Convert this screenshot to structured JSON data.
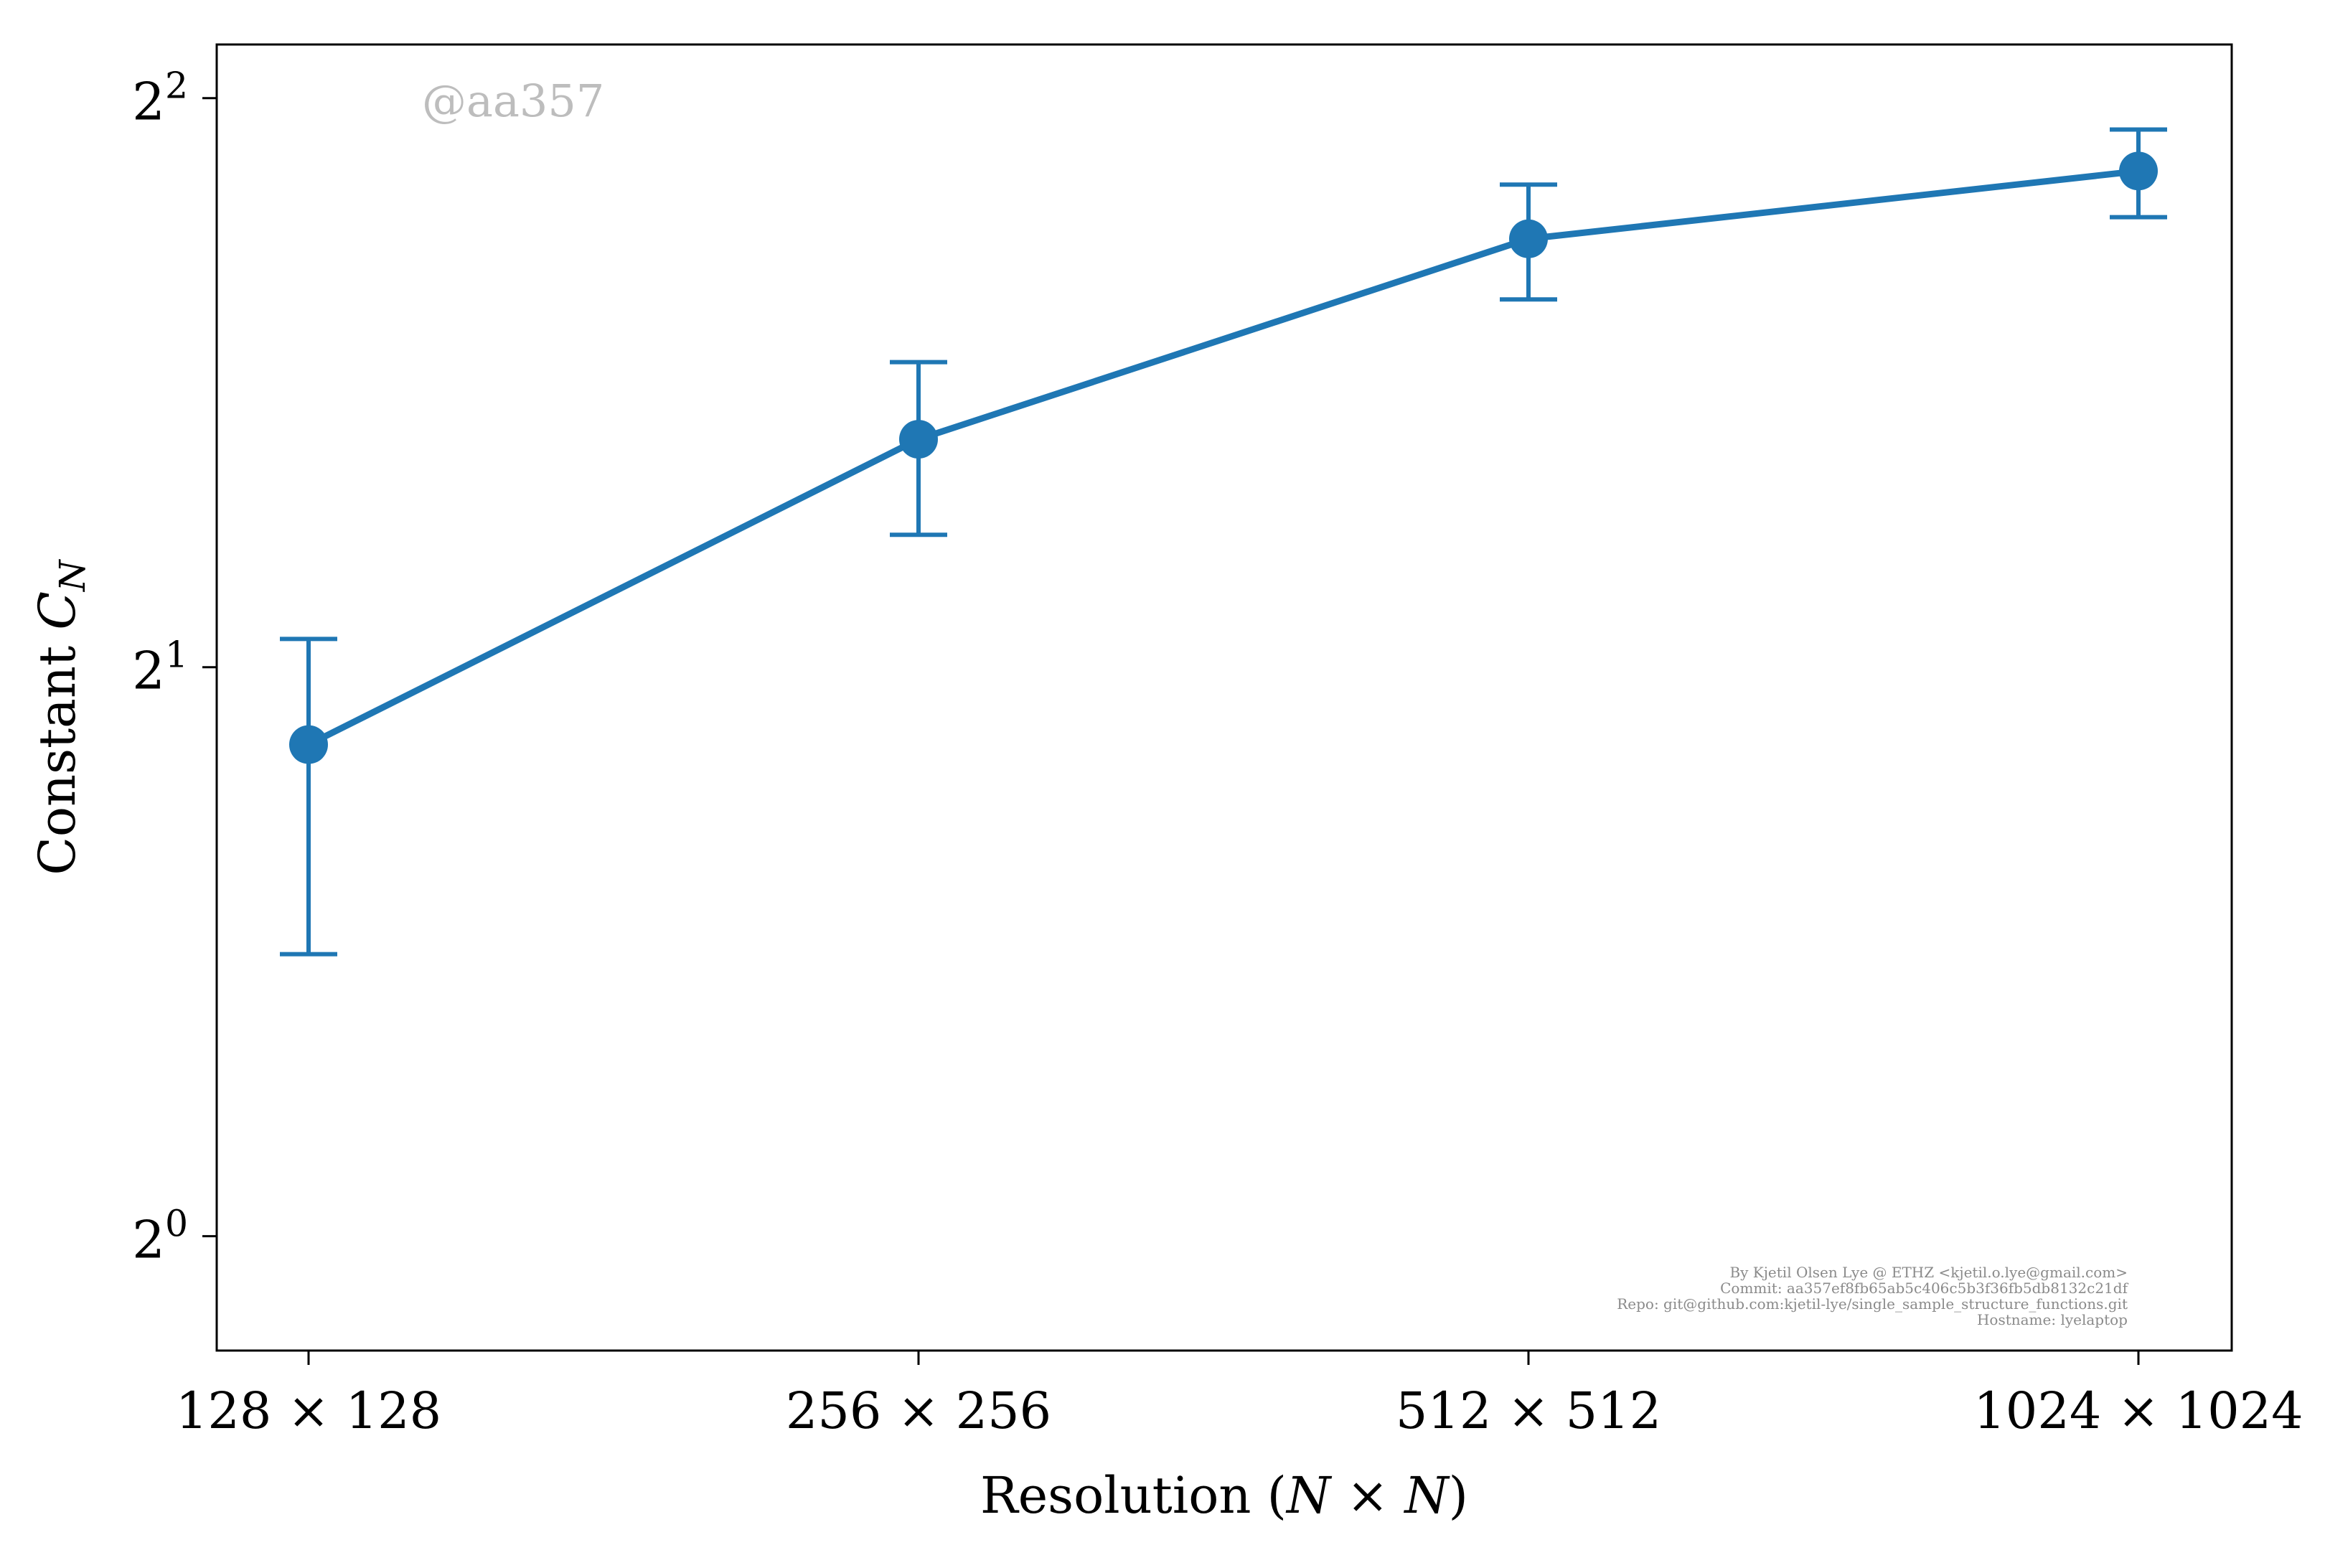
{
  "chart_data": {
    "type": "line",
    "xlabel": "Resolution (N × N)",
    "ylabel": "Constant C_N",
    "categories": [
      "128 × 128",
      "256 × 256",
      "512 × 512",
      "1024 × 1024"
    ],
    "y_scale": "log2",
    "ylim": [
      0.87,
      4.27
    ],
    "y_ticks": [
      {
        "value": 1,
        "label": "2^0"
      },
      {
        "value": 2,
        "label": "2^1"
      },
      {
        "value": 4,
        "label": "2^2"
      }
    ],
    "series": [
      {
        "values": [
          1.82,
          2.64,
          3.37,
          3.66
        ],
        "err_low": [
          1.41,
          2.35,
          3.13,
          3.46
        ],
        "err_high": [
          2.07,
          2.9,
          3.6,
          3.85
        ],
        "color": "#1f77b4"
      }
    ],
    "grid": false,
    "legend": "none"
  },
  "watermark": "@aa357",
  "footer": {
    "lines": [
      "By Kjetil Olsen Lye @ ETHZ <kjetil.o.lye@gmail.com>",
      "Commit: aa357ef8fb65ab5c406c5b3f36fb5db8132c21df",
      "Repo: git@github.com:kjetil-lye/single_sample_structure_functions.git",
      "Hostname: lyelaptop"
    ]
  }
}
